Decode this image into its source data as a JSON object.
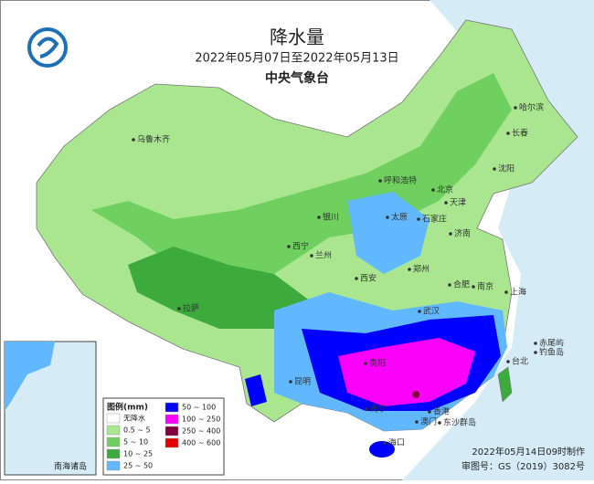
{
  "header": {
    "title": "降水量",
    "period": "2022年05月07日至2022年05月13日",
    "agency": "中央气象台"
  },
  "cities": [
    {
      "name": "哈尔滨"
    },
    {
      "name": "长春"
    },
    {
      "name": "沈阳"
    },
    {
      "name": "乌鲁木齐"
    },
    {
      "name": "呼和浩特"
    },
    {
      "name": "北京"
    },
    {
      "name": "天津"
    },
    {
      "name": "太原"
    },
    {
      "name": "石家庄"
    },
    {
      "name": "银川"
    },
    {
      "name": "济南"
    },
    {
      "name": "西宁"
    },
    {
      "name": "兰州"
    },
    {
      "name": "郑州"
    },
    {
      "name": "西安"
    },
    {
      "name": "合肥"
    },
    {
      "name": "南京"
    },
    {
      "name": "上海"
    },
    {
      "name": "拉萨"
    },
    {
      "name": "武汉"
    },
    {
      "name": "贵阳"
    },
    {
      "name": "昆明"
    },
    {
      "name": "南宁"
    },
    {
      "name": "香港"
    },
    {
      "name": "澳门"
    },
    {
      "name": "海口"
    },
    {
      "name": "台北"
    },
    {
      "name": "赤尾屿"
    },
    {
      "name": "钓鱼岛"
    },
    {
      "name": "东沙群岛"
    }
  ],
  "legend": {
    "title": "图例(mm)",
    "items": [
      {
        "label": "无降水",
        "color": "#ffffff"
      },
      {
        "label": "0.5 ~ 5",
        "color": "#a9e68f"
      },
      {
        "label": "5 ~ 10",
        "color": "#6fcf5f"
      },
      {
        "label": "10 ~ 25",
        "color": "#3daa3d"
      },
      {
        "label": "25 ~ 50",
        "color": "#61b8ff"
      },
      {
        "label": "50 ~ 100",
        "color": "#0000fe"
      },
      {
        "label": "100 ~ 250",
        "color": "#fa00fa"
      },
      {
        "label": "250 ~ 400",
        "color": "#800040"
      },
      {
        "label": "400 ~ 600",
        "color": "#e00000"
      }
    ]
  },
  "inset": {
    "label": "南海诸岛"
  },
  "footer": {
    "made": "2022年05月14日09时制作",
    "approval": "审图号：GS（2019）3082号"
  }
}
